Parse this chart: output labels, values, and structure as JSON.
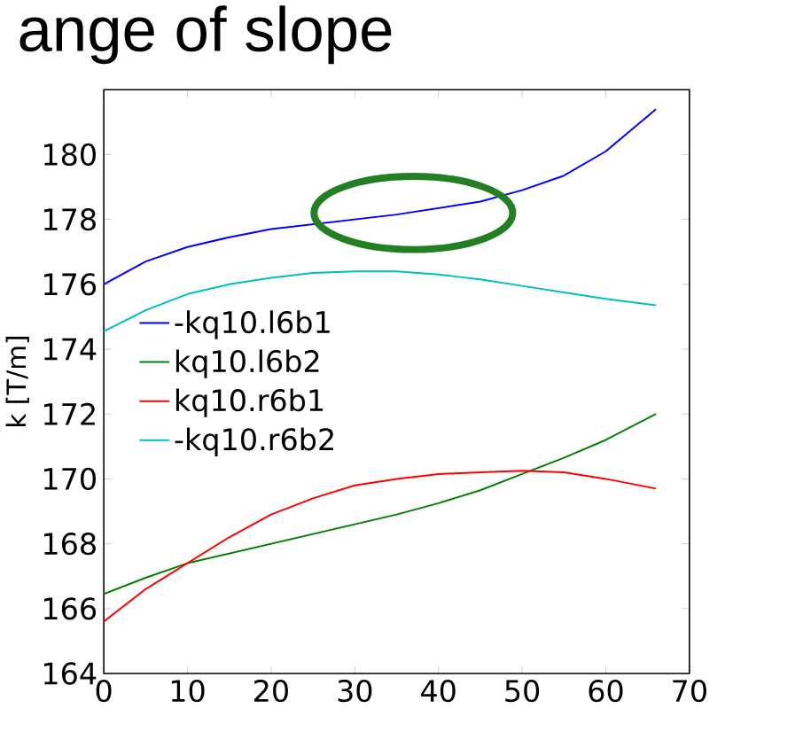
{
  "chart_data": {
    "type": "line",
    "title": "ange of slope",
    "ylabel": "k [T/m]",
    "x": [
      0,
      5,
      10,
      15,
      20,
      25,
      30,
      35,
      40,
      45,
      50,
      55,
      60,
      66
    ],
    "series": [
      {
        "name": "-kq10.l6b1",
        "color": "#0000ff",
        "values": [
          176.0,
          176.7,
          177.15,
          177.45,
          177.7,
          177.85,
          178.0,
          178.15,
          178.35,
          178.55,
          178.9,
          179.35,
          180.1,
          181.4
        ]
      },
      {
        "name": "kq10.l6b2",
        "color": "#008000",
        "values": [
          166.45,
          166.95,
          167.4,
          167.7,
          168.0,
          168.3,
          168.6,
          168.9,
          169.25,
          169.65,
          170.15,
          170.65,
          171.2,
          172.0
        ]
      },
      {
        "name": "kq10.r6b1",
        "color": "#ff0000",
        "values": [
          165.6,
          166.6,
          167.4,
          168.2,
          168.9,
          169.4,
          169.8,
          170.0,
          170.15,
          170.2,
          170.25,
          170.2,
          170.0,
          169.7
        ]
      },
      {
        "name": "-kq10.r6b2",
        "color": "#00bfbf",
        "values": [
          174.55,
          175.2,
          175.7,
          176.0,
          176.2,
          176.35,
          176.4,
          176.4,
          176.3,
          176.15,
          175.95,
          175.75,
          175.55,
          175.35
        ]
      }
    ],
    "xlim": [
      0,
      70
    ],
    "ylim": [
      164,
      182
    ],
    "xticks": [
      0,
      10,
      20,
      30,
      40,
      50,
      60,
      70
    ],
    "yticks": [
      164,
      166,
      168,
      170,
      172,
      174,
      176,
      178,
      180,
      {
        "value": 182,
        "label": null
      }
    ],
    "legend": "center left",
    "marker": "none",
    "line_style": "solid",
    "grid": false
  }
}
